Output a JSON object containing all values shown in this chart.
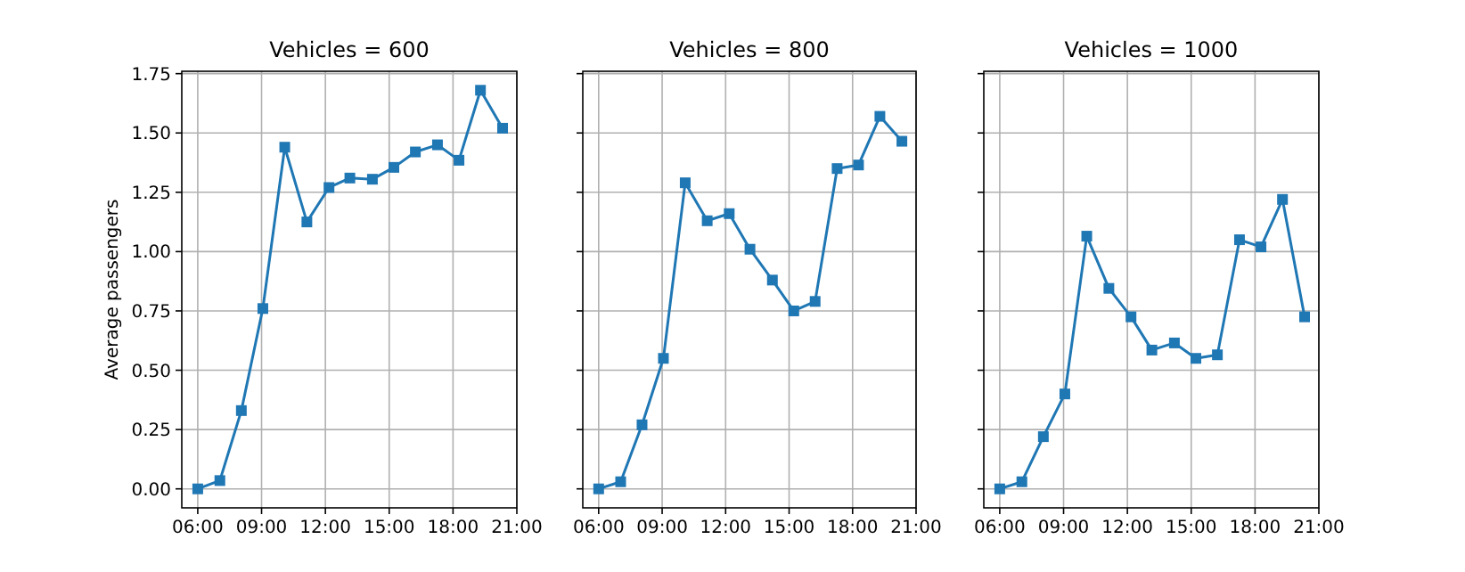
{
  "chart_data": [
    {
      "type": "line",
      "title": "Vehicles = 600",
      "ylabel": "Average passengers",
      "x": [
        6,
        7.04,
        8.05,
        9.06,
        10.09,
        11.13,
        12.17,
        13.15,
        14.21,
        15.22,
        16.23,
        17.27,
        18.28,
        19.29,
        20.33
      ],
      "series": [
        {
          "color": "#1f77b4",
          "values": [
            0,
            0.035,
            0.33,
            0.76,
            1.44,
            1.125,
            1.27,
            1.31,
            1.305,
            1.355,
            1.42,
            1.45,
            1.385,
            1.68,
            1.52
          ]
        }
      ],
      "xlim": [
        5.25,
        21
      ],
      "ylim": [
        -0.08,
        1.76
      ],
      "xticks": [
        {
          "value": 6,
          "label": "06:00"
        },
        {
          "value": 9,
          "label": "09:00"
        },
        {
          "value": 12,
          "label": "12:00"
        },
        {
          "value": 15,
          "label": "15:00"
        },
        {
          "value": 18,
          "label": "18:00"
        },
        {
          "value": 21,
          "label": "21:00"
        }
      ],
      "yticks": [
        {
          "value": 0,
          "label": "0.00"
        },
        0.25,
        {
          "value": 0.5,
          "label": "0.50"
        },
        0.75,
        {
          "value": 1,
          "label": "1.00"
        },
        1.25,
        {
          "value": 1.5,
          "label": "1.50"
        },
        1.75
      ],
      "grid": true,
      "marker": "square",
      "line_style": "solid"
    },
    {
      "type": "line",
      "title": "Vehicles = 800",
      "x": [
        6,
        7.04,
        8.05,
        9.06,
        10.09,
        11.13,
        12.17,
        13.15,
        14.21,
        15.22,
        16.23,
        17.27,
        18.28,
        19.29,
        20.33
      ],
      "series": [
        {
          "color": "#1f77b4",
          "values": [
            0,
            0.03,
            0.27,
            0.55,
            1.29,
            1.13,
            1.16,
            1.01,
            0.88,
            0.75,
            0.79,
            1.35,
            1.365,
            1.57,
            1.465
          ]
        }
      ],
      "xlim": [
        5.25,
        21
      ],
      "ylim": [
        -0.08,
        1.76
      ],
      "xticks": [
        {
          "value": 6,
          "label": "06:00"
        },
        {
          "value": 9,
          "label": "09:00"
        },
        {
          "value": 12,
          "label": "12:00"
        },
        {
          "value": 15,
          "label": "15:00"
        },
        {
          "value": 18,
          "label": "18:00"
        },
        {
          "value": 21,
          "label": "21:00"
        }
      ],
      "yticks": [
        0,
        0.25,
        0.5,
        0.75,
        1,
        1.25,
        1.5,
        1.75
      ],
      "tick_labels": "x",
      "grid": true,
      "marker": "square",
      "line_style": "solid"
    },
    {
      "type": "line",
      "title": "Vehicles = 1000",
      "x": [
        6,
        7.04,
        8.05,
        9.06,
        10.09,
        11.13,
        12.17,
        13.15,
        14.21,
        15.22,
        16.23,
        17.27,
        18.28,
        19.29,
        20.33
      ],
      "series": [
        {
          "color": "#1f77b4",
          "values": [
            0,
            0.03,
            0.22,
            0.4,
            1.065,
            0.845,
            0.725,
            0.585,
            0.615,
            0.55,
            0.565,
            1.05,
            1.02,
            1.22,
            0.725
          ]
        }
      ],
      "xlim": [
        5.25,
        21
      ],
      "ylim": [
        -0.08,
        1.76
      ],
      "xticks": [
        {
          "value": 6,
          "label": "06:00"
        },
        {
          "value": 9,
          "label": "09:00"
        },
        {
          "value": 12,
          "label": "12:00"
        },
        {
          "value": 15,
          "label": "15:00"
        },
        {
          "value": 18,
          "label": "18:00"
        },
        {
          "value": 21,
          "label": "21:00"
        }
      ],
      "yticks": [
        0,
        0.25,
        0.5,
        0.75,
        1,
        1.25,
        1.5,
        1.75
      ],
      "tick_labels": "x",
      "grid": true,
      "marker": "square",
      "line_style": "solid"
    }
  ]
}
